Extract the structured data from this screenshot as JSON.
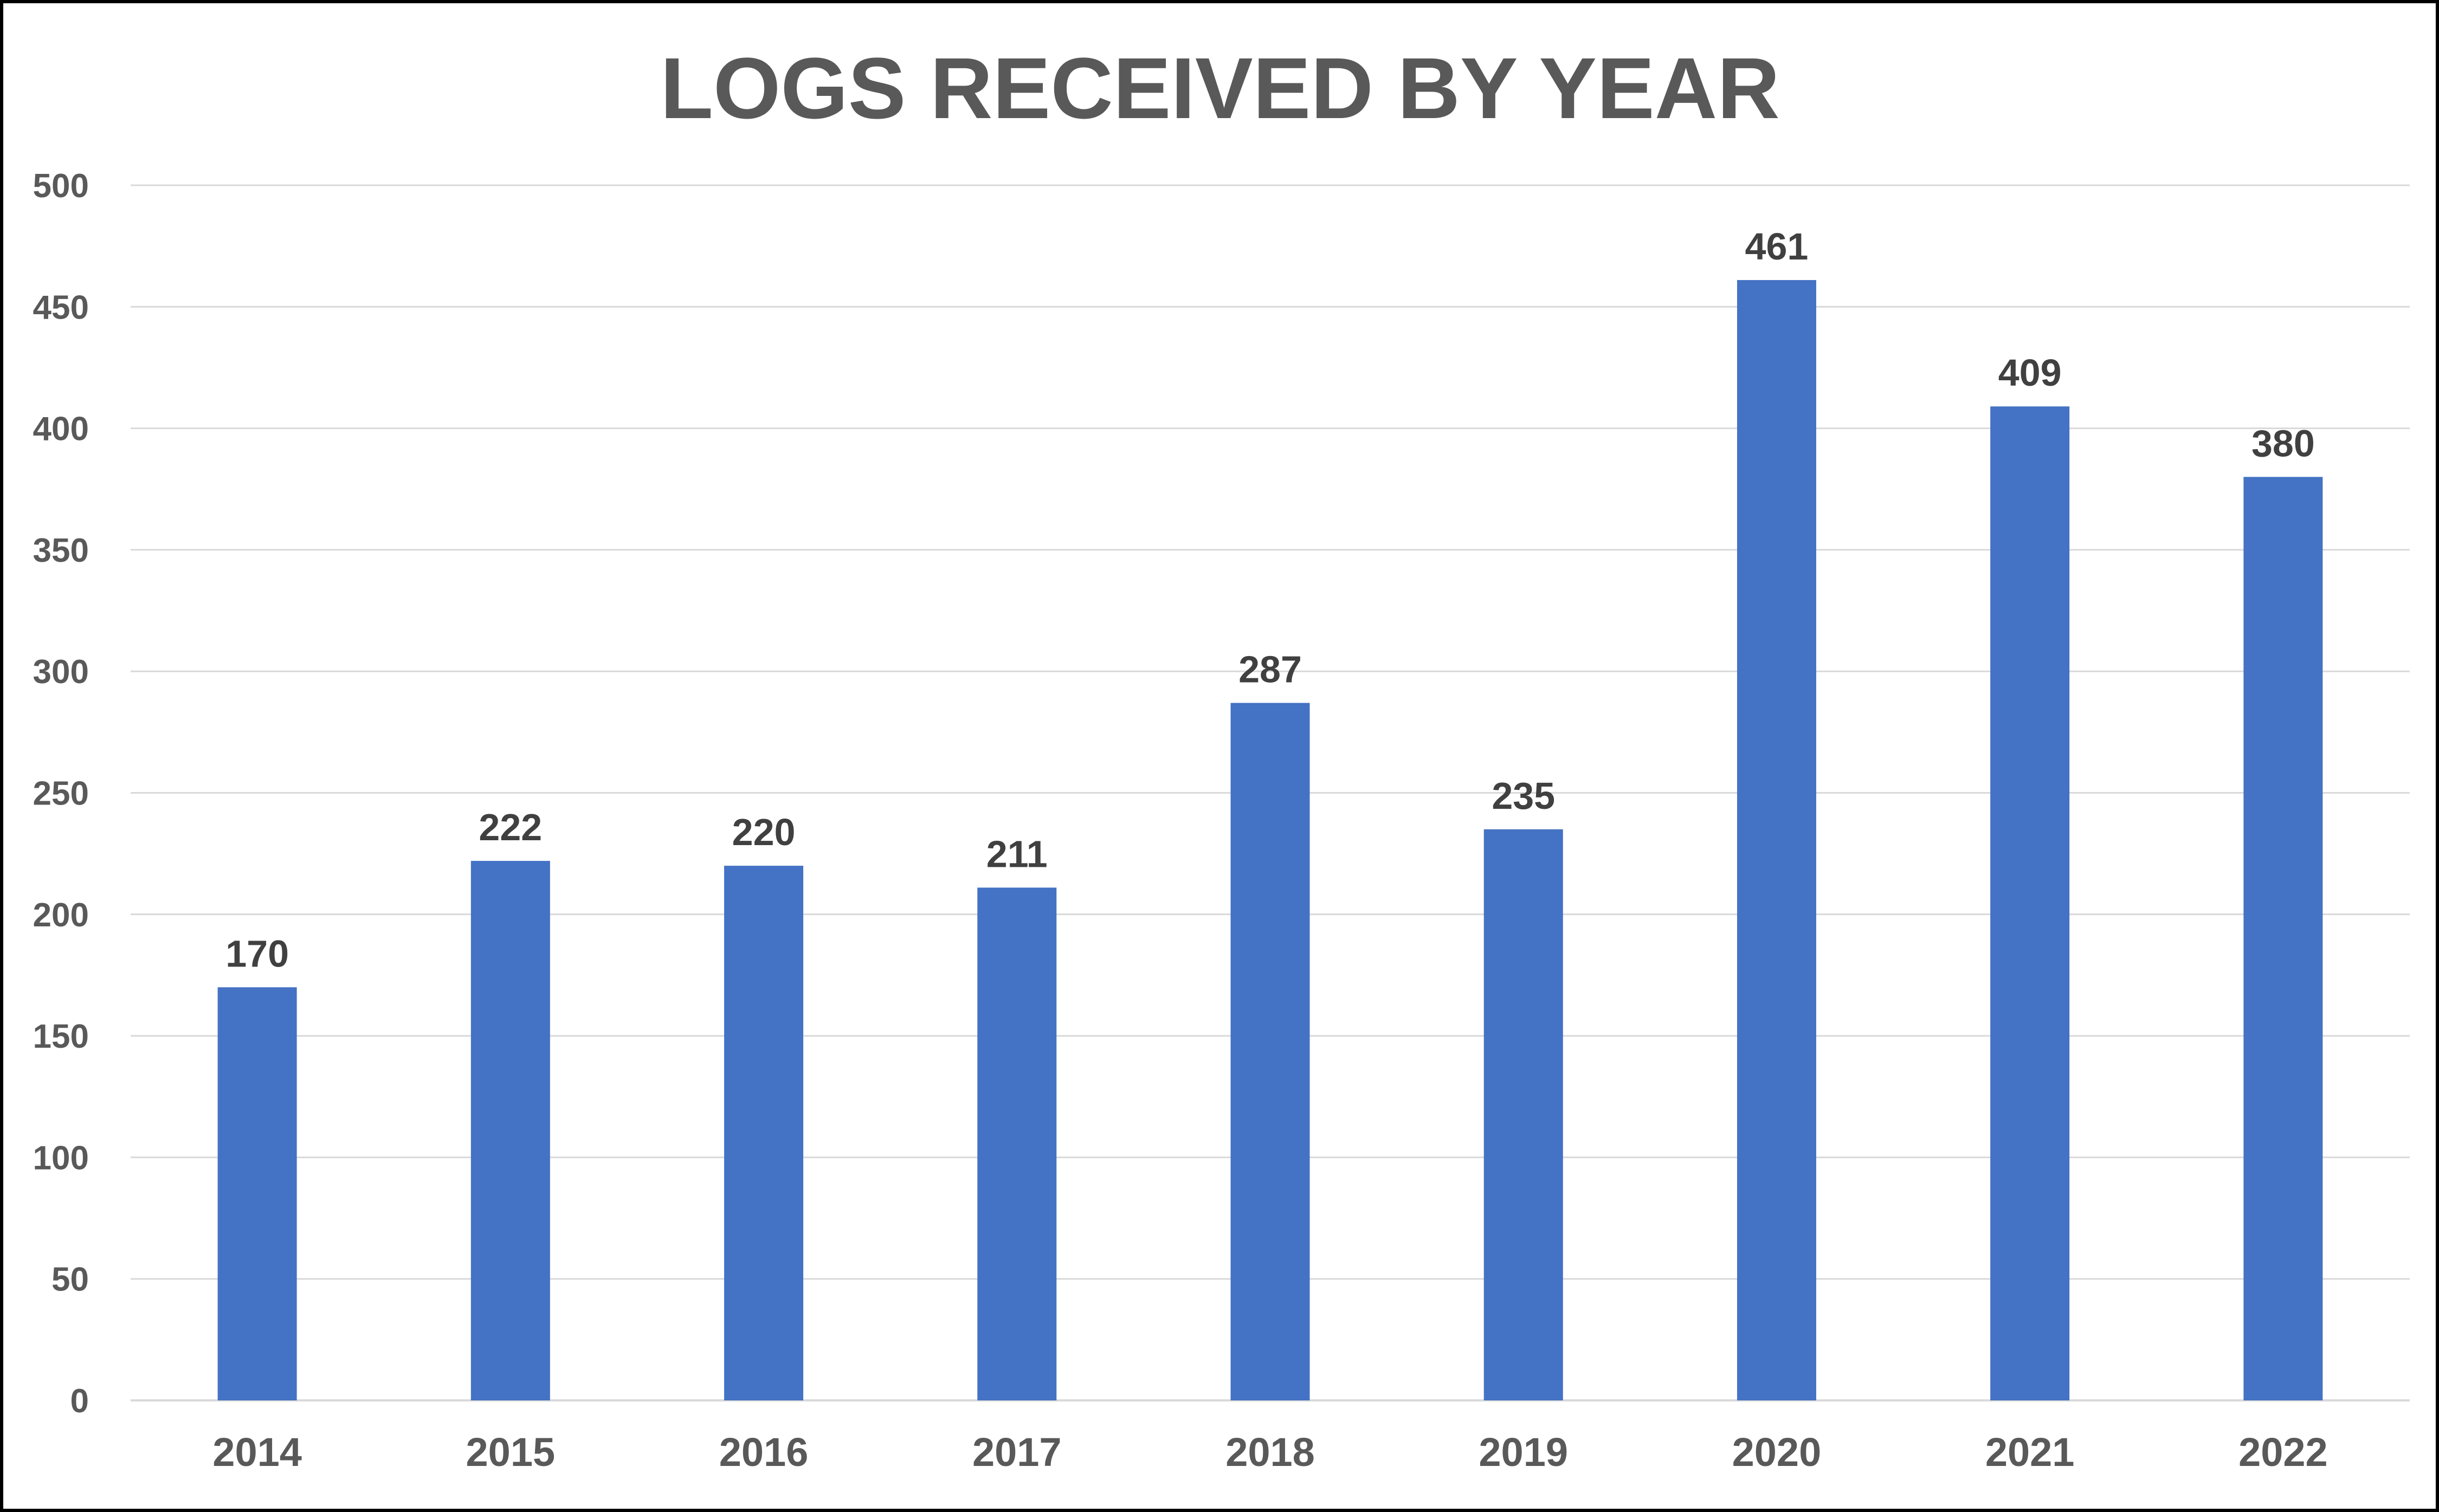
{
  "chart_data": {
    "type": "bar",
    "title": "LOGS RECEIVED BY YEAR",
    "xlabel": "",
    "ylabel": "",
    "categories": [
      "2014",
      "2015",
      "2016",
      "2017",
      "2018",
      "2019",
      "2020",
      "2021",
      "2022"
    ],
    "values": [
      170,
      222,
      220,
      211,
      287,
      235,
      461,
      409,
      380
    ],
    "data_labels": [
      "170",
      "222",
      "220",
      "211",
      "287",
      "235",
      "461",
      "409",
      "380"
    ],
    "ylim": [
      0,
      500
    ],
    "y_ticks": [
      "0",
      "50",
      "100",
      "150",
      "200",
      "250",
      "300",
      "350",
      "400",
      "450",
      "500"
    ],
    "grid": true,
    "legend": "none",
    "colors": {
      "bar": "#4472C4",
      "title": "#595959",
      "tick_label": "#595959",
      "data_label": "#404040",
      "grid": "#D9D9D9",
      "border": "#000000"
    }
  }
}
